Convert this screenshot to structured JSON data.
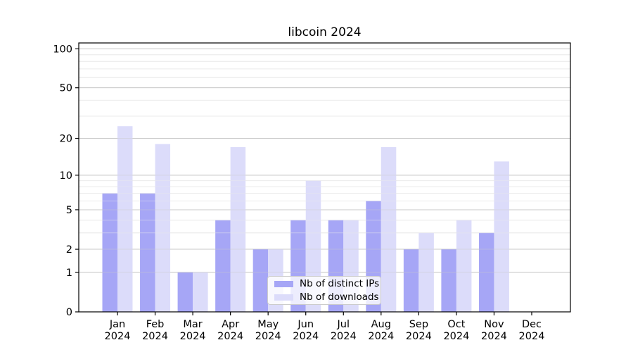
{
  "page": {
    "background": "#ffffff"
  },
  "chart_data": {
    "type": "bar",
    "title": "libcoin 2024",
    "categories": [
      "Jan",
      "Feb",
      "Mar",
      "Apr",
      "May",
      "Jun",
      "Jul",
      "Aug",
      "Sep",
      "Oct",
      "Nov",
      "Dec"
    ],
    "x_year_label": "2024",
    "series": [
      {
        "name": "Nb of distinct IPs",
        "color": "#a6a6f6",
        "values": [
          7,
          7,
          1,
          4,
          2,
          4,
          4,
          6,
          2,
          2,
          3,
          0
        ]
      },
      {
        "name": "Nb of downloads",
        "color": "#dcdcfa",
        "values": [
          25,
          18,
          1,
          17,
          2,
          9,
          4,
          17,
          3,
          4,
          13,
          0
        ]
      }
    ],
    "xlabel": "",
    "ylabel": "",
    "y_scale": "log10(value+1)",
    "y_ticks": [
      0,
      1,
      2,
      5,
      10,
      20,
      50,
      100
    ],
    "y_major_gridlines": [
      1,
      2,
      5,
      10,
      20,
      50,
      100
    ],
    "y_minor_gridlines": [
      3,
      4,
      6,
      7,
      8,
      9,
      30,
      40,
      60,
      70,
      80,
      90
    ],
    "ylim": [
      0,
      111
    ],
    "grid": true,
    "legend_position": "lower center",
    "colors": {
      "major_grid": "#c9c9c9",
      "minor_grid": "#ebebeb",
      "spine": "#000000",
      "tick_text": "#000000",
      "legend_border": "#cccccc"
    }
  }
}
